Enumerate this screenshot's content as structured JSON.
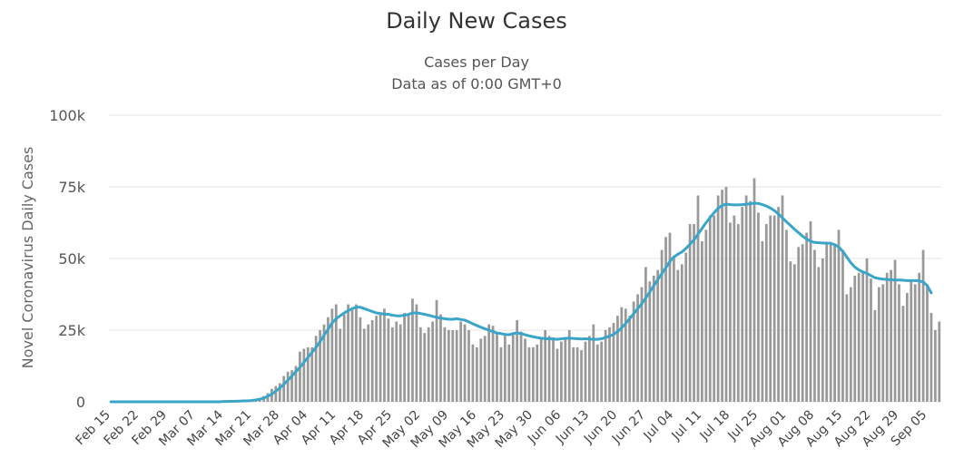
{
  "chart_data": {
    "type": "bar",
    "title": "Daily New Cases",
    "subtitle_lines": [
      "Cases per Day",
      "Data as of 0:00 GMT+0"
    ],
    "ylabel": "Novel Coronavirus Daily Cases",
    "ylim": [
      0,
      100000
    ],
    "y_ticks": [
      0,
      25000,
      50000,
      75000,
      100000
    ],
    "y_tick_labels": [
      "0",
      "25k",
      "50k",
      "75k",
      "100k"
    ],
    "x_tick_labels": [
      "Feb 15",
      "Feb 22",
      "Feb 29",
      "Mar 07",
      "Mar 14",
      "Mar 21",
      "Mar 28",
      "Apr 04",
      "Apr 11",
      "Apr 18",
      "Apr 25",
      "May 02",
      "May 09",
      "May 16",
      "May 23",
      "May 30",
      "Jun 06",
      "Jun 13",
      "Jun 20",
      "Jun 27",
      "Jul 04",
      "Jul 11",
      "Jul 18",
      "Jul 25",
      "Aug 01",
      "Aug 08",
      "Aug 15",
      "Aug 22",
      "Aug 29",
      "Sep 05"
    ],
    "grid": true,
    "colors": {
      "bars": "#999999",
      "moving_average": "#3aa5c8",
      "grid": "#e6e6e6"
    },
    "series": [
      {
        "type": "bar",
        "values": [
          0,
          0,
          0,
          0,
          0,
          0,
          0,
          0,
          0,
          0,
          0,
          0,
          0,
          0,
          0,
          0,
          0,
          0,
          0,
          0,
          0,
          0,
          0,
          0,
          0,
          0,
          0,
          0,
          200,
          200,
          300,
          300,
          300,
          400,
          600,
          700,
          900,
          1200,
          2000,
          3000,
          4500,
          5500,
          6500,
          9000,
          10500,
          11000,
          12500,
          17500,
          18500,
          19000,
          19000,
          23000,
          25000,
          27000,
          29500,
          32500,
          34000,
          25500,
          30500,
          34000,
          32000,
          34000,
          29500,
          25500,
          27000,
          28500,
          30000,
          31000,
          32500,
          29000,
          26000,
          28000,
          27000,
          31000,
          30500,
          36000,
          34000,
          26000,
          24000,
          26000,
          28000,
          35500,
          30500,
          26000,
          25000,
          25000,
          25000,
          28000,
          27000,
          25000,
          20000,
          19000,
          22000,
          23000,
          27000,
          26500,
          24000,
          19000,
          23000,
          20000,
          24000,
          28500,
          24500,
          22000,
          19000,
          19000,
          20000,
          22000,
          25000,
          23000,
          22500,
          18500,
          21000,
          22000,
          25000,
          19000,
          19000,
          18000,
          21000,
          23000,
          27000,
          20000,
          21000,
          25000,
          26000,
          27500,
          30000,
          33000,
          32500,
          30000,
          35000,
          37500,
          40000,
          47000,
          42000,
          44000,
          46000,
          53000,
          57500,
          59000,
          51000,
          46000,
          48000,
          52000,
          62000,
          62000,
          72000,
          56000,
          60000,
          65000,
          65000,
          72000,
          74000,
          75000,
          62500,
          65000,
          62000,
          68000,
          72000,
          70000,
          78000,
          66000,
          56000,
          62000,
          65000,
          65000,
          68000,
          72000,
          60000,
          49000,
          48000,
          54000,
          55000,
          59000,
          63000,
          53000,
          47000,
          50000,
          55000,
          55000,
          55000,
          60000,
          53000,
          37500,
          40000,
          44000,
          45000,
          45000,
          50000,
          43000,
          32000,
          40000,
          41000,
          45000,
          46000,
          49500,
          41000,
          33500,
          38000,
          42000,
          41000,
          45000,
          53000,
          41000,
          31000,
          25000,
          28000
        ]
      },
      {
        "type": "line",
        "name": "",
        "values": [
          0,
          0,
          0,
          0,
          0,
          0,
          0,
          0,
          0,
          0,
          0,
          0,
          0,
          0,
          0,
          0,
          0,
          0,
          0,
          0,
          0,
          0,
          0,
          0,
          0,
          0,
          0,
          0,
          100,
          100,
          150,
          200,
          250,
          300,
          350,
          450,
          650,
          900,
          1300,
          1900,
          2700,
          3700,
          4800,
          6100,
          7500,
          9000,
          10500,
          12000,
          13800,
          15500,
          17200,
          19000,
          21000,
          23200,
          25300,
          27500,
          29000,
          30000,
          31000,
          31800,
          32500,
          33000,
          33000,
          32500,
          32000,
          31500,
          31000,
          30800,
          30600,
          30500,
          30200,
          30000,
          30000,
          30200,
          30500,
          31000,
          31000,
          30800,
          30500,
          30200,
          29800,
          29500,
          29200,
          29000,
          28800,
          28800,
          29000,
          28700,
          28500,
          27900,
          27200,
          26600,
          26000,
          25500,
          25000,
          24500,
          24000,
          23800,
          23500,
          23400,
          23800,
          24000,
          23800,
          23400,
          23000,
          22700,
          22400,
          22200,
          22000,
          22000,
          21900,
          21800,
          22000,
          22100,
          22200,
          22100,
          22000,
          21900,
          22000,
          21900,
          21800,
          21800,
          22000,
          22400,
          22900,
          23500,
          24500,
          25800,
          27300,
          29000,
          30700,
          32500,
          34200,
          36200,
          38300,
          40500,
          42700,
          44700,
          46800,
          49000,
          50500,
          51500,
          52300,
          53500,
          55000,
          56500,
          58500,
          60500,
          62500,
          64300,
          66000,
          67500,
          68500,
          69000,
          68800,
          68700,
          68700,
          68800,
          68900,
          69100,
          69300,
          69200,
          68800,
          68300,
          67600,
          66700,
          65500,
          64200,
          62800,
          61500,
          60200,
          59000,
          57800,
          56800,
          56000,
          55600,
          55500,
          55400,
          55400,
          55300,
          54800,
          54000,
          52500,
          50500,
          48500,
          47000,
          46000,
          45300,
          44800,
          44000,
          43300,
          43000,
          42800,
          42700,
          42600,
          42500,
          42500,
          42400,
          42300,
          42300,
          42300,
          42200,
          41800,
          40500,
          38000
        ]
      }
    ]
  }
}
